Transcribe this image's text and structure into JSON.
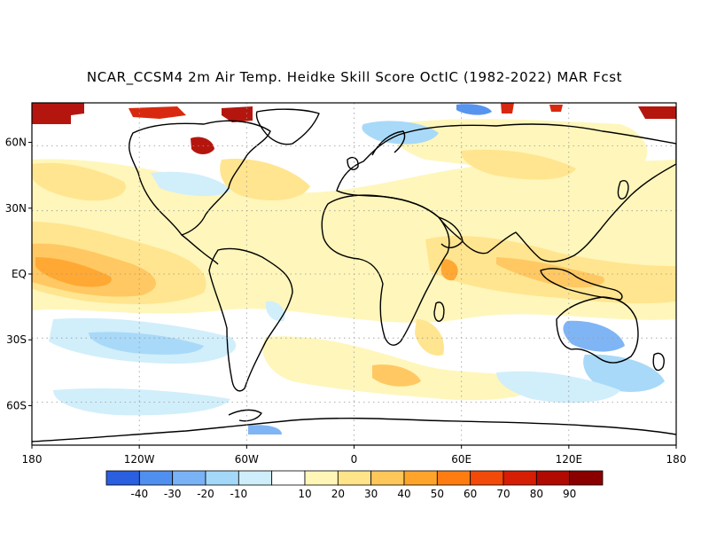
{
  "title": "NCAR_CCSM4 2m Air Temp. Heidke Skill Score OctIC (1982-2022) MAR Fcst",
  "map": {
    "projection": "equirectangular",
    "lon_range": [
      -180,
      180
    ],
    "lat_range": [
      -78,
      78
    ],
    "lat_labels": [
      {
        "lat": 60,
        "text": "60N"
      },
      {
        "lat": 30,
        "text": "30N"
      },
      {
        "lat": 0,
        "text": "EQ"
      },
      {
        "lat": -30,
        "text": "30S"
      },
      {
        "lat": -60,
        "text": "60S"
      }
    ],
    "lon_labels": [
      {
        "lon": -180,
        "text": "180"
      },
      {
        "lon": -120,
        "text": "120W"
      },
      {
        "lon": -60,
        "text": "60W"
      },
      {
        "lon": 0,
        "text": "0"
      },
      {
        "lon": 60,
        "text": "60E"
      },
      {
        "lon": 120,
        "text": "120E"
      },
      {
        "lon": 180,
        "text": "180"
      }
    ],
    "gridlines": "dotted"
  },
  "colorbar": {
    "bins": [
      {
        "color": "#2a5fe0"
      },
      {
        "color": "#4f8fef"
      },
      {
        "color": "#79b2f5"
      },
      {
        "color": "#a4d8f8"
      },
      {
        "color": "#cfeefb"
      },
      {
        "color": "#ffffff"
      },
      {
        "color": "#fff6b8"
      },
      {
        "color": "#ffe48a"
      },
      {
        "color": "#ffc65a"
      },
      {
        "color": "#ffa42a"
      },
      {
        "color": "#ff7d10"
      },
      {
        "color": "#f24a08"
      },
      {
        "color": "#d61e04"
      },
      {
        "color": "#b00a02"
      },
      {
        "color": "#8a0000"
      }
    ],
    "tick_labels": [
      "-40",
      "-30",
      "-20",
      "-10",
      "10",
      "20",
      "30",
      "40",
      "50",
      "60",
      "70",
      "80",
      "90"
    ]
  }
}
